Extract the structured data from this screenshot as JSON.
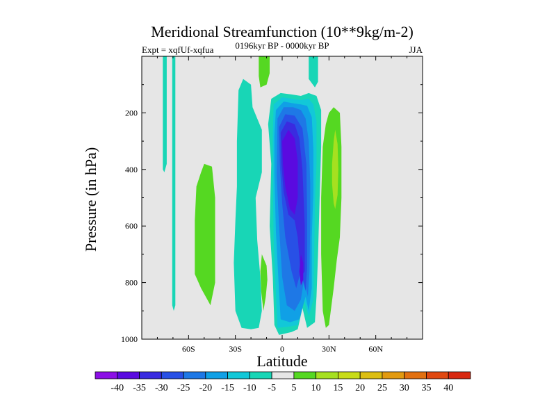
{
  "chart_data": {
    "type": "filled-contour",
    "title": "Meridional Streamfunction (10**9kg/m-2)",
    "left_label": "Expt = xqfUf-xqfua",
    "center_label": "0196kyr BP - 0000kyr BP",
    "right_label": "JJA",
    "xlabel": "Latitude",
    "ylabel": "Pressure (in hPa)",
    "xlim": [
      -90,
      90
    ],
    "ylim": [
      1000,
      0
    ],
    "xticks": [
      -60,
      -30,
      0,
      30,
      60
    ],
    "xtick_labels": [
      "60S",
      "30S",
      "0",
      "30N",
      "60N"
    ],
    "yticks": [
      200,
      400,
      600,
      800,
      1000
    ],
    "ytick_labels": [
      "200",
      "400",
      "600",
      "800",
      "1000"
    ],
    "background": "#e6e6e6",
    "colorbar": {
      "labels": [
        "-40",
        "-35",
        "-30",
        "-25",
        "-20",
        "-15",
        "-10",
        "-5",
        "5",
        "10",
        "15",
        "20",
        "25",
        "30",
        "35",
        "40"
      ],
      "colors": [
        "#8c0fe6",
        "#5a0ae0",
        "#3a2be0",
        "#2850e6",
        "#1e78e6",
        "#10a0e6",
        "#12c8d8",
        "#18d6b6",
        "#e6e6e6",
        "#55d822",
        "#a6e020",
        "#c8dc18",
        "#dcbe12",
        "#e29a10",
        "#e27010",
        "#e04810",
        "#d82810"
      ]
    },
    "regions": [
      {
        "name": "cyan-strip-60S-high",
        "level": -5,
        "color": "#18d6b6",
        "points": [
          [
            -76.5,
            0
          ],
          [
            -74,
            0
          ],
          [
            -74,
            380
          ],
          [
            -75.5,
            410
          ],
          [
            -76.5,
            400
          ]
        ]
      },
      {
        "name": "cyan-strip-60S-full",
        "level": -5,
        "color": "#18d6b6",
        "points": [
          [
            -70.5,
            0
          ],
          [
            -68.5,
            0
          ],
          [
            -68.5,
            880
          ],
          [
            -69.5,
            900
          ],
          [
            -70.5,
            880
          ]
        ]
      },
      {
        "name": "green-blob-50S",
        "level": 5,
        "color": "#55d822",
        "points": [
          [
            -50,
            380
          ],
          [
            -45,
            390
          ],
          [
            -43,
            500
          ],
          [
            -43,
            800
          ],
          [
            -46,
            880
          ],
          [
            -48,
            860
          ],
          [
            -52,
            820
          ],
          [
            -56,
            770
          ],
          [
            -56,
            580
          ],
          [
            -55,
            460
          ],
          [
            -52,
            410
          ]
        ]
      },
      {
        "name": "cyan-band-25S",
        "level": -5,
        "color": "#18d6b6",
        "points": [
          [
            -25,
            80
          ],
          [
            -20,
            100
          ],
          [
            -19,
            180
          ],
          [
            -16,
            220
          ],
          [
            -13,
            260
          ],
          [
            -13,
            410
          ],
          [
            -17,
            500
          ],
          [
            -16,
            650
          ],
          [
            -14,
            780
          ],
          [
            -13,
            900
          ],
          [
            -15,
            960
          ],
          [
            -20,
            965
          ],
          [
            -26,
            960
          ],
          [
            -30,
            900
          ],
          [
            -31,
            730
          ],
          [
            -30,
            580
          ],
          [
            -29,
            460
          ],
          [
            -29,
            300
          ],
          [
            -28,
            120
          ]
        ]
      },
      {
        "name": "green-sliver-15S",
        "level": 5,
        "color": "#55d822",
        "points": [
          [
            -13,
            700
          ],
          [
            -10,
            740
          ],
          [
            -9.5,
            790
          ],
          [
            -10.5,
            850
          ],
          [
            -12,
            900
          ],
          [
            -13.5,
            830
          ],
          [
            -14,
            760
          ]
        ]
      },
      {
        "name": "green-top-15S",
        "level": 5,
        "color": "#55d822",
        "points": [
          [
            -15,
            0
          ],
          [
            -8,
            0
          ],
          [
            -8,
            60
          ],
          [
            -10,
            100
          ],
          [
            -14,
            110
          ],
          [
            -15,
            70
          ]
        ]
      },
      {
        "name": "cyan-top-strip-20N",
        "level": -5,
        "color": "#18d6b6",
        "points": [
          [
            17,
            0
          ],
          [
            23,
            0
          ],
          [
            23,
            90
          ],
          [
            21,
            110
          ],
          [
            17,
            80
          ]
        ]
      },
      {
        "name": "green-right-25N",
        "level": 5,
        "color": "#55d822",
        "points": [
          [
            33,
            180
          ],
          [
            37,
            200
          ],
          [
            38,
            320
          ],
          [
            38,
            500
          ],
          [
            37,
            640
          ],
          [
            35,
            720
          ],
          [
            33,
            820
          ],
          [
            30,
            950
          ],
          [
            28,
            960
          ],
          [
            26,
            900
          ],
          [
            25,
            700
          ],
          [
            25,
            500
          ],
          [
            26,
            320
          ],
          [
            28,
            240
          ],
          [
            30,
            200
          ]
        ]
      },
      {
        "name": "yellow-green-right",
        "level": 10,
        "color": "#a6e020",
        "points": [
          [
            34,
            260
          ],
          [
            35.5,
            310
          ],
          [
            36,
            400
          ],
          [
            35.5,
            490
          ],
          [
            34,
            540
          ],
          [
            33,
            520
          ],
          [
            32,
            450
          ],
          [
            32,
            380
          ],
          [
            33,
            300
          ]
        ]
      },
      {
        "name": "level-minus5",
        "level": -5,
        "color": "#18d6b6",
        "points": [
          [
            -7,
            150
          ],
          [
            -1,
            130
          ],
          [
            6,
            135
          ],
          [
            12,
            140
          ],
          [
            17,
            130
          ],
          [
            22,
            140
          ],
          [
            25,
            190
          ],
          [
            25,
            320
          ],
          [
            24,
            500
          ],
          [
            23,
            700
          ],
          [
            22,
            850
          ],
          [
            21,
            940
          ],
          [
            16,
            960
          ],
          [
            13,
            890
          ],
          [
            10,
            965
          ],
          [
            6,
            975
          ],
          [
            -2,
            985
          ],
          [
            -5,
            950
          ],
          [
            -6,
            780
          ],
          [
            -8,
            600
          ],
          [
            -7,
            380
          ],
          [
            -9,
            240
          ]
        ]
      },
      {
        "name": "level-minus10",
        "level": -10,
        "color": "#12c8d8",
        "points": [
          [
            -5.5,
            170
          ],
          [
            0,
            145
          ],
          [
            6,
            150
          ],
          [
            12,
            155
          ],
          [
            17,
            150
          ],
          [
            20,
            170
          ],
          [
            22,
            230
          ],
          [
            22,
            380
          ],
          [
            21,
            520
          ],
          [
            20.5,
            700
          ],
          [
            20,
            860
          ],
          [
            17,
            920
          ],
          [
            14,
            860
          ],
          [
            10,
            950
          ],
          [
            5,
            955
          ],
          [
            -3,
            960
          ],
          [
            -4,
            840
          ],
          [
            -5.5,
            640
          ],
          [
            -6,
            440
          ],
          [
            -6,
            280
          ]
        ]
      },
      {
        "name": "level-minus15",
        "level": -15,
        "color": "#10a0e6",
        "points": [
          [
            -4,
            190
          ],
          [
            1,
            160
          ],
          [
            6,
            165
          ],
          [
            12,
            170
          ],
          [
            16,
            175
          ],
          [
            19,
            215
          ],
          [
            20,
            330
          ],
          [
            20,
            480
          ],
          [
            19,
            640
          ],
          [
            19,
            820
          ],
          [
            17,
            900
          ],
          [
            15,
            850
          ],
          [
            11,
            930
          ],
          [
            5,
            940
          ],
          [
            -1,
            930
          ],
          [
            -2.5,
            780
          ],
          [
            -4,
            620
          ],
          [
            -5,
            420
          ],
          [
            -5,
            280
          ]
        ]
      },
      {
        "name": "level-minus20",
        "level": -20,
        "color": "#1e78e6",
        "points": [
          [
            -3,
            220
          ],
          [
            1,
            180
          ],
          [
            7,
            180
          ],
          [
            12,
            190
          ],
          [
            15,
            220
          ],
          [
            17,
            300
          ],
          [
            18,
            450
          ],
          [
            18,
            580
          ],
          [
            17.5,
            760
          ],
          [
            16.5,
            850
          ],
          [
            14,
            790
          ],
          [
            12,
            860
          ],
          [
            8,
            900
          ],
          [
            3,
            880
          ],
          [
            0,
            780
          ],
          [
            -2,
            600
          ],
          [
            -3.5,
            420
          ]
        ]
      },
      {
        "name": "level-minus25",
        "level": -25,
        "color": "#2850e6",
        "points": [
          [
            -2,
            250
          ],
          [
            2,
            205
          ],
          [
            8,
            210
          ],
          [
            13,
            255
          ],
          [
            15.5,
            380
          ],
          [
            16,
            560
          ],
          [
            16,
            750
          ],
          [
            15,
            830
          ],
          [
            12,
            760
          ],
          [
            9,
            820
          ],
          [
            6,
            760
          ],
          [
            2,
            640
          ],
          [
            0,
            520
          ],
          [
            -1.5,
            380
          ]
        ]
      },
      {
        "name": "level-minus30",
        "level": -30,
        "color": "#3a2be0",
        "points": [
          [
            -1,
            270
          ],
          [
            3,
            230
          ],
          [
            8,
            240
          ],
          [
            11,
            290
          ],
          [
            13,
            400
          ],
          [
            14.5,
            600
          ],
          [
            14.5,
            760
          ],
          [
            12,
            780
          ],
          [
            10,
            640
          ],
          [
            8,
            580
          ],
          [
            4,
            560
          ],
          [
            1,
            480
          ],
          [
            -0.5,
            380
          ]
        ]
      },
      {
        "name": "level-minus35",
        "level": -35,
        "color": "#5a0ae0",
        "points": [
          [
            0,
            300
          ],
          [
            4,
            260
          ],
          [
            8,
            290
          ],
          [
            10,
            370
          ],
          [
            10,
            500
          ],
          [
            8,
            560
          ],
          [
            5,
            540
          ],
          [
            2,
            460
          ],
          [
            0.5,
            380
          ]
        ]
      },
      {
        "name": "level-minus35-lower",
        "level": -35,
        "color": "#5a0ae0",
        "points": [
          [
            12,
            700
          ],
          [
            13.5,
            730
          ],
          [
            13.5,
            790
          ],
          [
            12,
            810
          ],
          [
            11,
            760
          ]
        ]
      }
    ]
  }
}
